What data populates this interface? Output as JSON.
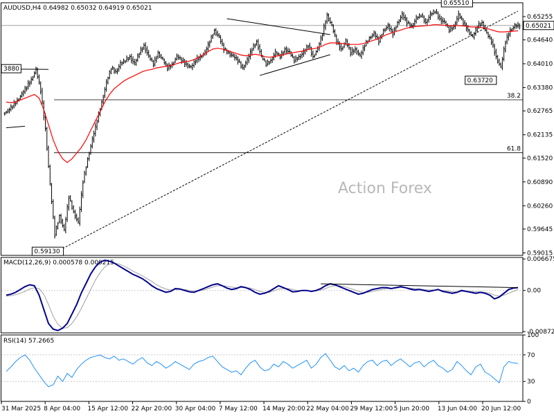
{
  "header": {
    "symbol_line": "AUDUSD,H4  0.64982 0.65032 0.64919 0.65021"
  },
  "watermark": "Action Forex",
  "colors": {
    "candle": "#000000",
    "moving_average": "#ff0000",
    "macd_main": "#00008b",
    "macd_signal": "#a0a0a0",
    "rsi": "#1e90ff",
    "grid": "#c8c8c8",
    "current_price_line": "#a0a0a0"
  },
  "chart_data": [
    {
      "type": "candlestick",
      "panel": "price",
      "symbol": "AUDUSD",
      "timeframe": "H4",
      "ohlc_header": {
        "open": 0.64982,
        "high": 0.65032,
        "low": 0.64919,
        "close": 0.65021
      },
      "current_price": 0.65021,
      "y_ticks": [
        "0.65255",
        "0.64640",
        "0.64010",
        "0.63380",
        "0.62765",
        "0.62135",
        "0.61520",
        "0.60890",
        "0.60260",
        "0.59645",
        "0.59015"
      ],
      "ylim": [
        0.5895,
        0.6562
      ],
      "x_tick_labels": [
        "31 Mar 2025",
        "8 Apr 04:00",
        "15 Apr 12:00",
        "22 Apr 20:00",
        "30 Apr 04:00",
        "7 May 12:00",
        "14 May 20:00",
        "22 May 04:00",
        "29 May 12:00",
        "5 Jun 20:00",
        "13 Jun 04:00",
        "20 Jun 12:00"
      ],
      "closes": [
        0.6275,
        0.629,
        0.6305,
        0.632,
        0.634,
        0.636,
        0.6385,
        0.633,
        0.623,
        0.608,
        0.595,
        0.6,
        0.596,
        0.605,
        0.601,
        0.598,
        0.609,
        0.615,
        0.62,
        0.625,
        0.63,
        0.635,
        0.639,
        0.638,
        0.64,
        0.641,
        0.642,
        0.64,
        0.643,
        0.645,
        0.642,
        0.64,
        0.643,
        0.641,
        0.639,
        0.64,
        0.642,
        0.641,
        0.64,
        0.639,
        0.641,
        0.642,
        0.643,
        0.646,
        0.649,
        0.647,
        0.644,
        0.643,
        0.642,
        0.641,
        0.639,
        0.641,
        0.644,
        0.646,
        0.642,
        0.64,
        0.641,
        0.643,
        0.642,
        0.644,
        0.643,
        0.641,
        0.642,
        0.643,
        0.645,
        0.642,
        0.644,
        0.648,
        0.653,
        0.65,
        0.646,
        0.644,
        0.646,
        0.643,
        0.644,
        0.642,
        0.645,
        0.647,
        0.648,
        0.646,
        0.649,
        0.65,
        0.648,
        0.651,
        0.653,
        0.651,
        0.65,
        0.652,
        0.653,
        0.651,
        0.653,
        0.654,
        0.652,
        0.651,
        0.649,
        0.65,
        0.653,
        0.651,
        0.649,
        0.647,
        0.65,
        0.651,
        0.648,
        0.646,
        0.642,
        0.639,
        0.646,
        0.649,
        0.65,
        0.6502
      ],
      "moving_average": [
        0.63,
        0.6298,
        0.63,
        0.6305,
        0.631,
        0.6315,
        0.632,
        0.631,
        0.628,
        0.624,
        0.62,
        0.617,
        0.615,
        0.614,
        0.615,
        0.6165,
        0.618,
        0.62,
        0.6225,
        0.625,
        0.6275,
        0.63,
        0.632,
        0.6335,
        0.6345,
        0.6355,
        0.6362,
        0.6368,
        0.6374,
        0.638,
        0.6384,
        0.6386,
        0.639,
        0.6392,
        0.6394,
        0.6396,
        0.64,
        0.6404,
        0.6406,
        0.6408,
        0.6412,
        0.6418,
        0.6425,
        0.6433,
        0.644,
        0.6442,
        0.644,
        0.6436,
        0.6432,
        0.6428,
        0.6424,
        0.6422,
        0.6424,
        0.6426,
        0.6424,
        0.642,
        0.6418,
        0.642,
        0.6422,
        0.6425,
        0.6428,
        0.643,
        0.6432,
        0.6434,
        0.6438,
        0.644,
        0.6442,
        0.6446,
        0.6452,
        0.6456,
        0.6456,
        0.6455,
        0.6454,
        0.6452,
        0.6452,
        0.6452,
        0.6454,
        0.6458,
        0.6462,
        0.6466,
        0.6472,
        0.6478,
        0.6482,
        0.6486,
        0.649,
        0.6494,
        0.6497,
        0.6499,
        0.65,
        0.6501,
        0.6502,
        0.6504,
        0.6504,
        0.6503,
        0.6502,
        0.6501,
        0.6502,
        0.6501,
        0.65,
        0.6498,
        0.6498,
        0.6497,
        0.6495,
        0.6492,
        0.6488,
        0.6485,
        0.6485,
        0.6486,
        0.6487,
        0.6488
      ],
      "annotations": [
        {
          "label": "0.65510",
          "x_index": 96,
          "price": 0.6551
        },
        {
          "label": "0.63720",
          "x_index": 105,
          "price": 0.6372
        },
        {
          "label": "0.59130",
          "x_index": 11,
          "price": 0.5913
        },
        {
          "label": "3880",
          "x_index": 0,
          "price": 0.6388
        }
      ],
      "fibonacci_levels": [
        {
          "label": "38.2",
          "price": 0.6306
        },
        {
          "label": "61.8",
          "price": 0.6166
        }
      ],
      "trendlines": [
        {
          "style": "dashed",
          "from": {
            "x_index": 12,
            "price": 0.5913
          },
          "to": {
            "x_index": 109,
            "price": 0.654
          }
        },
        {
          "style": "solid",
          "from": {
            "x_index": 47,
            "price": 0.652
          },
          "to": {
            "x_index": 69,
            "price": 0.6478
          }
        },
        {
          "style": "solid",
          "from": {
            "x_index": 54,
            "price": 0.637
          },
          "to": {
            "x_index": 69,
            "price": 0.6425
          }
        },
        {
          "style": "solid",
          "from": {
            "x_index": 0,
            "price": 0.6387
          },
          "to": {
            "x_index": 9,
            "price": 0.6386
          }
        },
        {
          "style": "solid",
          "from": {
            "x_index": 0,
            "price": 0.6232
          },
          "to": {
            "x_index": 4,
            "price": 0.6236
          }
        }
      ]
    },
    {
      "type": "line",
      "panel": "macd",
      "title": "MACD(12,26,9) 0.000578 0.000215",
      "y_ticks": [
        "0.006675",
        "0.00",
        "-0.008724"
      ],
      "ylim": [
        -0.009,
        0.007
      ],
      "series": [
        {
          "name": "MACD",
          "values": [
            -0.001,
            -0.0008,
            -0.0004,
            0.0002,
            0.0008,
            0.0012,
            0.001,
            -0.001,
            -0.004,
            -0.007,
            -0.0082,
            -0.0085,
            -0.008,
            -0.007,
            -0.005,
            -0.003,
            -0.0005,
            0.0015,
            0.0035,
            0.005,
            0.006,
            0.0064,
            0.0062,
            0.0058,
            0.0052,
            0.0046,
            0.004,
            0.0034,
            0.003,
            0.0025,
            0.0018,
            0.001,
            0.0004,
            0.0,
            -0.0004,
            -0.0002,
            0.0004,
            0.0003,
            0.0,
            -0.0003,
            -0.0004,
            0.0,
            0.0004,
            0.0008,
            0.0012,
            0.0014,
            0.001,
            0.0005,
            0.0002,
            0.0004,
            0.0008,
            0.0006,
            0.0002,
            -0.0004,
            -0.0008,
            -0.0006,
            -0.0002,
            0.0004,
            0.001,
            0.0006,
            0.0002,
            -0.0003,
            -0.0002,
            0.0,
            0.0,
            -0.0002,
            0.0,
            0.0004,
            0.001,
            0.0014,
            0.0012,
            0.0008,
            0.0004,
            0.0,
            -0.0004,
            -0.0008,
            -0.0006,
            -0.0002,
            0.0002,
            0.0004,
            0.0006,
            0.0006,
            0.0004,
            0.0006,
            0.0008,
            0.0006,
            0.0003,
            0.0001,
            0.0002,
            0.0,
            -0.0002,
            0.0,
            0.0002,
            -0.0002,
            -0.0004,
            -0.0006,
            -0.0004,
            0.0,
            -0.0002,
            -0.0004,
            -0.0006,
            -0.0004,
            -0.0006,
            -0.001,
            -0.0018,
            -0.0014,
            -0.0006,
            0.0002,
            0.0005,
            0.0006
          ]
        },
        {
          "name": "Signal",
          "values": [
            -0.0012,
            -0.0011,
            -0.0009,
            -0.0006,
            -0.0002,
            0.0003,
            0.0006,
            0.0004,
            -0.0008,
            -0.003,
            -0.0055,
            -0.0072,
            -0.008,
            -0.0079,
            -0.007,
            -0.0056,
            -0.0038,
            -0.0018,
            0.0002,
            0.0022,
            0.0038,
            0.005,
            0.0056,
            0.0058,
            0.0056,
            0.0052,
            0.0047,
            0.0041,
            0.0036,
            0.0031,
            0.0025,
            0.0019,
            0.0012,
            0.0007,
            0.0003,
            0.0001,
            0.0002,
            0.0002,
            0.0002,
            0.0,
            -0.0001,
            -0.0001,
            0.0001,
            0.0004,
            0.0007,
            0.001,
            0.001,
            0.0009,
            0.0007,
            0.0006,
            0.0006,
            0.0006,
            0.0005,
            0.0002,
            -0.0002,
            -0.0004,
            -0.0004,
            -0.0001,
            0.0003,
            0.0004,
            0.0004,
            0.0002,
            0.0,
            0.0,
            0.0,
            -0.0001,
            -0.0001,
            0.0001,
            0.0004,
            0.0008,
            0.001,
            0.001,
            0.0008,
            0.0005,
            0.0002,
            -0.0002,
            -0.0004,
            -0.0004,
            -0.0002,
            0.0,
            0.0002,
            0.0004,
            0.0004,
            0.0005,
            0.0006,
            0.0006,
            0.0005,
            0.0004,
            0.0003,
            0.0002,
            0.0001,
            0.0001,
            0.0001,
            0.0,
            -0.0001,
            -0.0003,
            -0.0003,
            -0.0002,
            -0.0002,
            -0.0002,
            -0.0003,
            -0.0003,
            -0.0004,
            -0.0006,
            -0.001,
            -0.0012,
            -0.001,
            -0.0006,
            -0.0002,
            0.0002
          ]
        }
      ],
      "trendline": {
        "from": {
          "x_index": 67,
          "value": 0.0014
        },
        "to": {
          "x_index": 109,
          "value": 0.0006
        }
      }
    },
    {
      "type": "line",
      "panel": "rsi",
      "title": "RSI(14) 57.2665",
      "y_ticks": [
        "100",
        "70",
        "30",
        "0"
      ],
      "ylim": [
        0,
        100
      ],
      "levels": [
        70,
        30
      ],
      "series": [
        {
          "name": "RSI",
          "values": [
            45,
            52,
            60,
            66,
            70,
            62,
            50,
            40,
            30,
            22,
            25,
            38,
            30,
            42,
            36,
            48,
            56,
            62,
            66,
            68,
            70,
            66,
            64,
            68,
            62,
            64,
            60,
            56,
            62,
            66,
            58,
            54,
            60,
            56,
            50,
            54,
            60,
            56,
            52,
            48,
            56,
            60,
            62,
            66,
            68,
            60,
            52,
            48,
            44,
            46,
            40,
            50,
            58,
            62,
            52,
            46,
            48,
            56,
            52,
            60,
            56,
            50,
            54,
            58,
            62,
            50,
            56,
            66,
            72,
            62,
            52,
            48,
            54,
            46,
            50,
            44,
            54,
            60,
            62,
            54,
            60,
            62,
            54,
            60,
            64,
            58,
            52,
            58,
            60,
            52,
            58,
            62,
            54,
            50,
            44,
            48,
            60,
            54,
            46,
            40,
            52,
            56,
            44,
            40,
            34,
            28,
            52,
            60,
            58,
            57
          ]
        }
      ]
    }
  ]
}
